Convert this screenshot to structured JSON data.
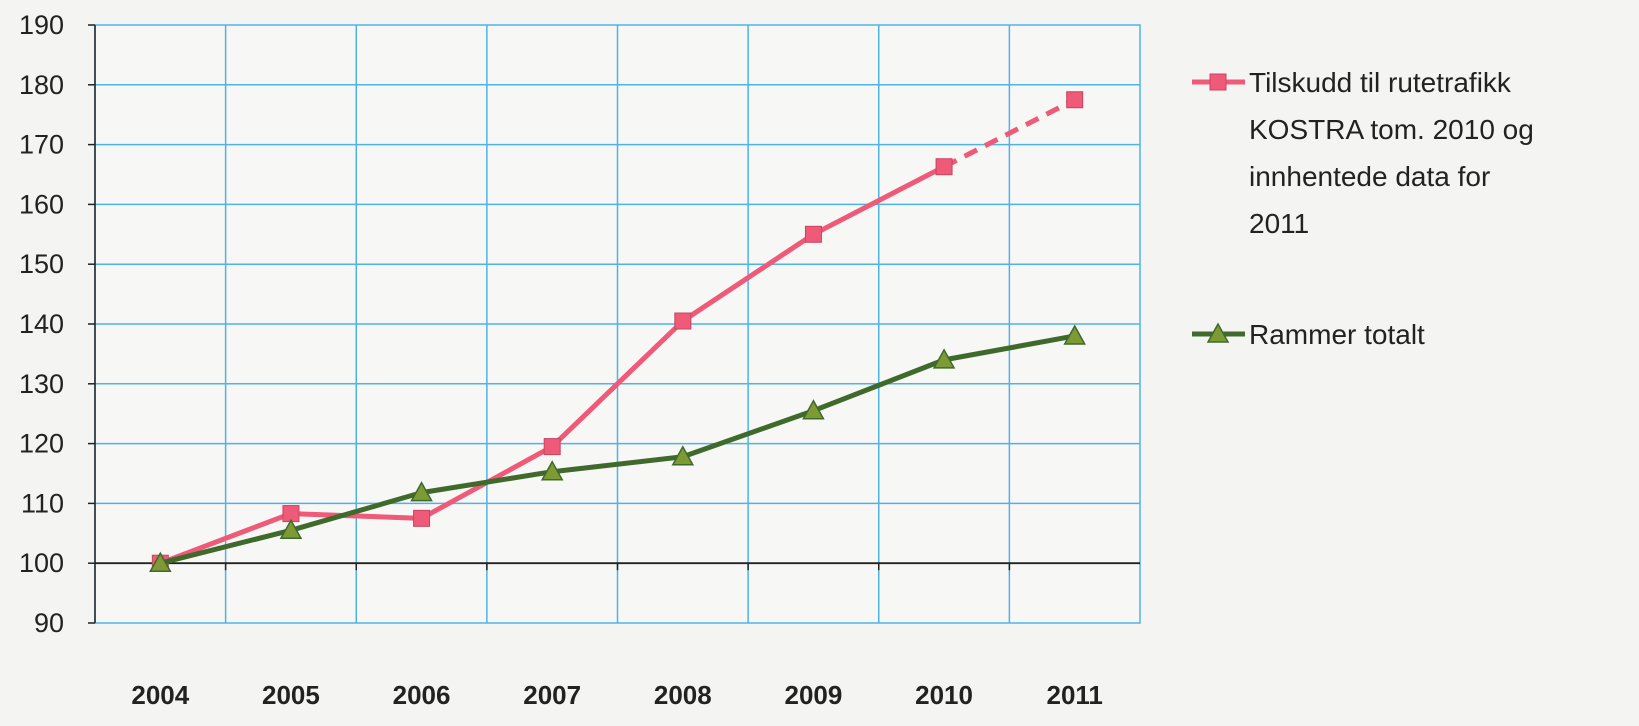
{
  "chart_data": {
    "type": "line",
    "x": [
      "2004",
      "2005",
      "2006",
      "2007",
      "2008",
      "2009",
      "2010",
      "2011"
    ],
    "ylim": [
      90,
      190
    ],
    "yticks": [
      90,
      100,
      110,
      120,
      130,
      140,
      150,
      160,
      170,
      180,
      190
    ],
    "grid": true,
    "grid_color": "#4fb3e8",
    "legend_position": "right",
    "series": [
      {
        "name_lines": [
          "Tilskudd til rutetrafikk",
          "KOSTRA tom. 2010 og",
          "innhentede data for",
          "2011"
        ],
        "values": [
          100,
          108.3,
          107.5,
          119.5,
          140.5,
          155,
          166.3,
          177.5
        ],
        "color": "#ee5a78",
        "marker": "square",
        "dashed_from_index": 6
      },
      {
        "name_lines": [
          "Rammer  totalt"
        ],
        "values": [
          100,
          105.5,
          111.8,
          115.3,
          117.8,
          125.5,
          134,
          138
        ],
        "color": "#3f6a2c",
        "marker": "triangle",
        "marker_fill": "#7e9a35"
      }
    ]
  }
}
